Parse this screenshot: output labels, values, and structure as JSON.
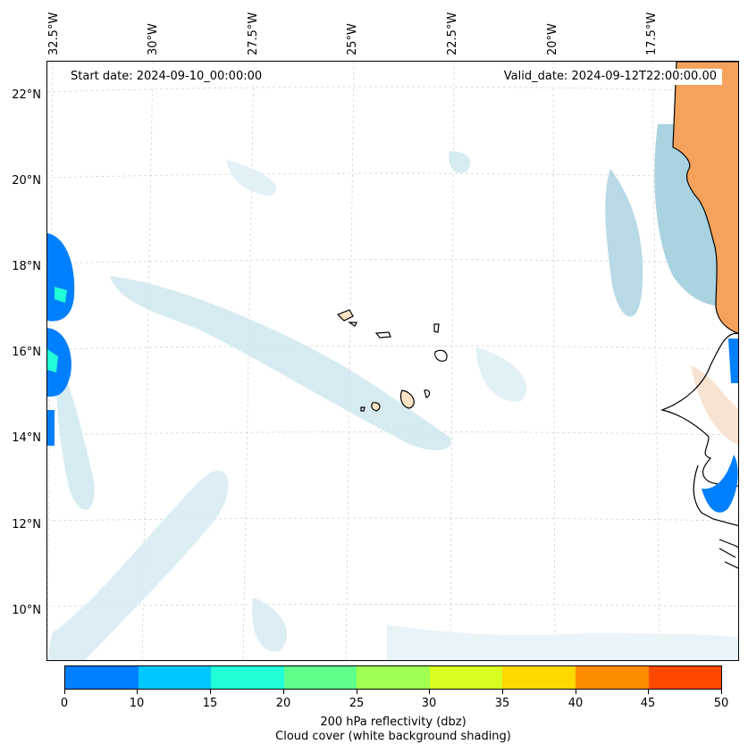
{
  "map": {
    "start_date": "Start date: 2024-09-10_00:00:00",
    "valid_date": "Valid_date: 2024-09-12T22:00:00.00",
    "lon_labels": [
      "32.5°W",
      "30°W",
      "27.5°W",
      "25°W",
      "22.5°W",
      "20°W",
      "17.5°W"
    ],
    "lat_labels": [
      "22°N",
      "20°N",
      "18°N",
      "16°N",
      "14°N",
      "12°N",
      "10°N"
    ],
    "features": [
      "coastline-africa",
      "cape-verde-islands",
      "cloud-cover-shading",
      "reflectivity-contours"
    ],
    "colors": {
      "land_fill": "#f5a35c",
      "cloud_shading": "#a9d3e0",
      "coastline": "#000000"
    }
  },
  "colorbar": {
    "ticks": [
      "0",
      "10",
      "15",
      "20",
      "25",
      "30",
      "35",
      "40",
      "45",
      "50"
    ],
    "colors": [
      "#0080ff",
      "#00c8ff",
      "#20ffd8",
      "#60ff8c",
      "#a0ff50",
      "#d8ff20",
      "#ffd800",
      "#ff8c00",
      "#ff4800"
    ],
    "label_line1": "200 hPa reflectivity (dbz)",
    "label_line2": "Cloud cover (white background shading)"
  }
}
